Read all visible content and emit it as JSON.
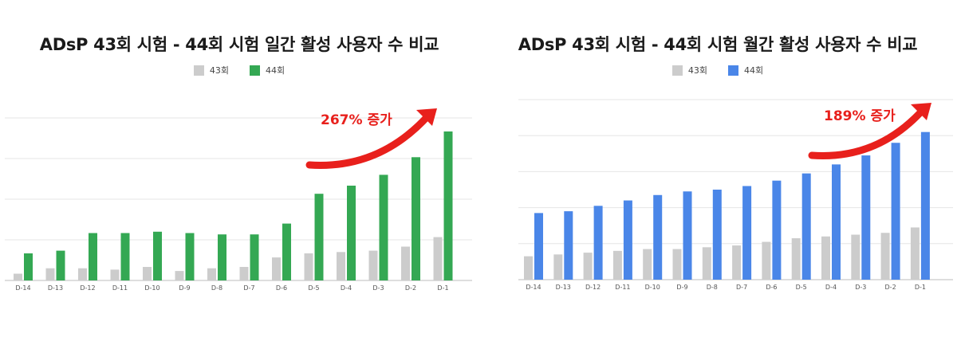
{
  "chart_data": [
    {
      "type": "bar",
      "title": "ADsP 43회 시험 - 44회 시험 일간 활성 사용자 수 비교",
      "categories": [
        "D-14",
        "D-13",
        "D-12",
        "D-11",
        "D-10",
        "D-9",
        "D-8",
        "D-7",
        "D-6",
        "D-5",
        "D-4",
        "D-3",
        "D-2",
        "D-1"
      ],
      "series": [
        {
          "name": "43회",
          "color": "#cccccc",
          "values": [
            0.5,
            0.9,
            0.9,
            0.8,
            1.0,
            0.7,
            0.9,
            1.0,
            1.7,
            2.0,
            2.1,
            2.2,
            2.5,
            3.2
          ]
        },
        {
          "name": "44회",
          "color": "#34a853",
          "values": [
            2.0,
            2.2,
            3.5,
            3.5,
            3.6,
            3.5,
            3.4,
            3.4,
            4.2,
            6.4,
            7.0,
            7.8,
            9.1,
            11.0
          ]
        }
      ],
      "ylim": [
        0,
        12
      ],
      "grid": true,
      "legend": "top-center",
      "annotation": "267% 증가"
    },
    {
      "type": "bar",
      "title": "ADsP 43회 시험 - 44회 시험 월간 활성 사용자 수 비교",
      "categories": [
        "D-14",
        "D-13",
        "D-12",
        "D-11",
        "D-10",
        "D-9",
        "D-8",
        "D-7",
        "D-6",
        "D-5",
        "D-4",
        "D-3",
        "D-2",
        "D-1"
      ],
      "series": [
        {
          "name": "43회",
          "color": "#cccccc",
          "values": [
            1.3,
            1.4,
            1.5,
            1.6,
            1.7,
            1.7,
            1.8,
            1.9,
            2.1,
            2.3,
            2.4,
            2.5,
            2.6,
            2.9
          ]
        },
        {
          "name": "44회",
          "color": "#4a86e8",
          "values": [
            3.7,
            3.8,
            4.1,
            4.4,
            4.7,
            4.9,
            5.0,
            5.2,
            5.5,
            5.9,
            6.4,
            6.9,
            7.6,
            8.2
          ]
        }
      ],
      "ylim": [
        0,
        10
      ],
      "grid": true,
      "legend": "top-center",
      "annotation": "189% 증가"
    }
  ]
}
